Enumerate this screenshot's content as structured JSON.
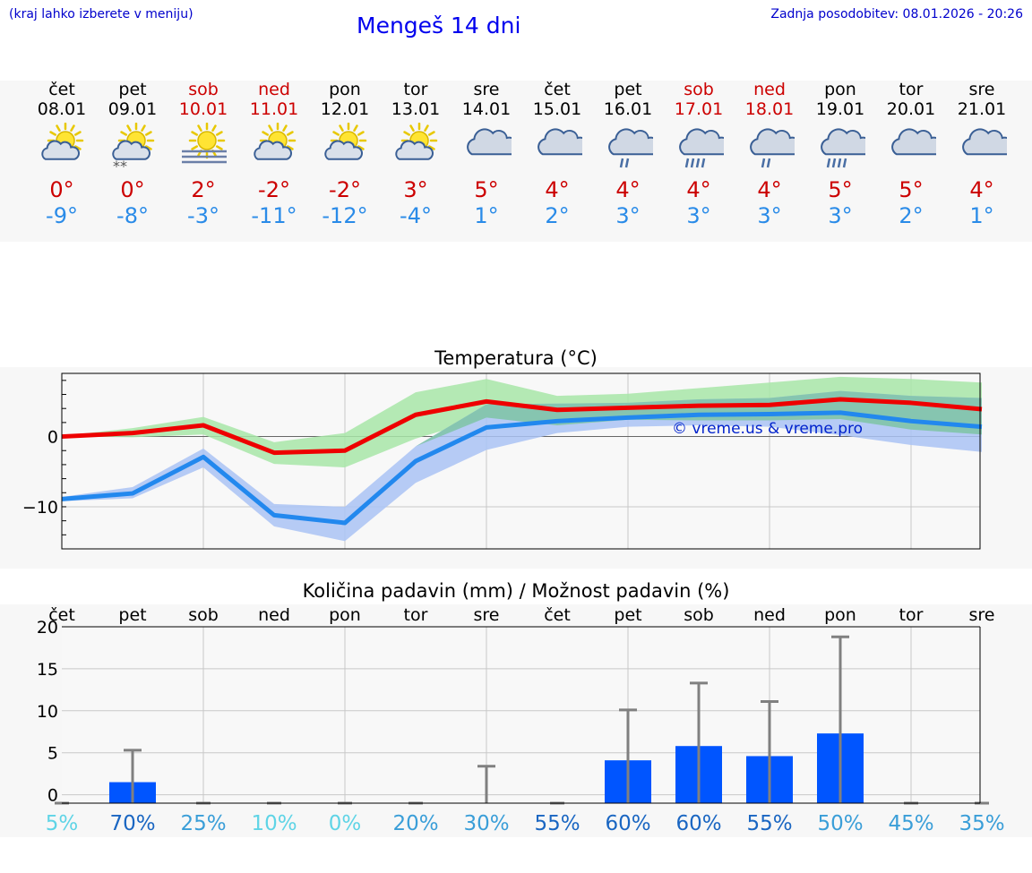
{
  "header": {
    "menu_hint": "(kraj lahko izberete v meniju)",
    "title": "Mengeš 14 dni",
    "updated": "Zadnja posodobitev: 08.01.2026 - 20:26"
  },
  "days": [
    {
      "name": "čet",
      "date": "08.01",
      "weekend": false,
      "icon": "sun-cloud-icon",
      "tmax": "0°",
      "tmin": "-9°"
    },
    {
      "name": "pet",
      "date": "09.01",
      "weekend": false,
      "icon": "sun-cloud-snow-icon",
      "tmax": "0°",
      "tmin": "-8°"
    },
    {
      "name": "sob",
      "date": "10.01",
      "weekend": true,
      "icon": "sun-fog-icon",
      "tmax": "2°",
      "tmin": "-3°"
    },
    {
      "name": "ned",
      "date": "11.01",
      "weekend": true,
      "icon": "sun-cloud-icon",
      "tmax": "-2°",
      "tmin": "-11°"
    },
    {
      "name": "pon",
      "date": "12.01",
      "weekend": false,
      "icon": "sun-cloud-icon",
      "tmax": "-2°",
      "tmin": "-12°"
    },
    {
      "name": "tor",
      "date": "13.01",
      "weekend": false,
      "icon": "sun-cloud-icon",
      "tmax": "3°",
      "tmin": "-4°"
    },
    {
      "name": "sre",
      "date": "14.01",
      "weekend": false,
      "icon": "cloud-icon",
      "tmax": "5°",
      "tmin": "1°"
    },
    {
      "name": "čet",
      "date": "15.01",
      "weekend": false,
      "icon": "cloud-icon",
      "tmax": "4°",
      "tmin": "2°"
    },
    {
      "name": "pet",
      "date": "16.01",
      "weekend": false,
      "icon": "cloud-rain-icon",
      "tmax": "4°",
      "tmin": "3°"
    },
    {
      "name": "sob",
      "date": "17.01",
      "weekend": true,
      "icon": "cloud-heavy-rain-icon",
      "tmax": "4°",
      "tmin": "3°"
    },
    {
      "name": "ned",
      "date": "18.01",
      "weekend": true,
      "icon": "cloud-rain-icon",
      "tmax": "4°",
      "tmin": "3°"
    },
    {
      "name": "pon",
      "date": "19.01",
      "weekend": false,
      "icon": "cloud-heavy-rain-icon",
      "tmax": "5°",
      "tmin": "3°"
    },
    {
      "name": "tor",
      "date": "20.01",
      "weekend": false,
      "icon": "cloud-icon",
      "tmax": "5°",
      "tmin": "2°"
    },
    {
      "name": "sre",
      "date": "21.01",
      "weekend": false,
      "icon": "cloud-icon",
      "tmax": "4°",
      "tmin": "1°"
    }
  ],
  "colors": {
    "max_line": "#ee0000",
    "min_line": "#2288ee",
    "max_band": "#a8e6a8",
    "min_band": "#aac3f5",
    "overlap": "#7fc4a6",
    "bar": "#0055ff",
    "error": "#808080"
  },
  "chart_data": [
    {
      "type": "line",
      "title": "Temperatura (°C)",
      "watermark": "© vreme.us & vreme.pro",
      "x": [
        0,
        1,
        2,
        3,
        4,
        5,
        6,
        7,
        8,
        9,
        10,
        11,
        12,
        13
      ],
      "ylim": [
        -16,
        9
      ],
      "yticks": [
        0,
        -10
      ],
      "ytick_labels": [
        "0",
        "−10"
      ],
      "series": [
        {
          "name": "max",
          "values": [
            0.0,
            0.5,
            1.6,
            -2.3,
            -2.0,
            3.1,
            5.0,
            3.8,
            4.1,
            4.4,
            4.5,
            5.3,
            4.8,
            3.9
          ],
          "band_low": [
            0.0,
            -0.1,
            0.3,
            -3.9,
            -4.4,
            -0.3,
            2.7,
            1.6,
            2.4,
            2.3,
            2.3,
            2.5,
            1.0,
            0.3
          ],
          "band_high": [
            0.1,
            1.2,
            2.8,
            -0.8,
            0.5,
            6.3,
            8.2,
            5.8,
            6.1,
            6.9,
            7.7,
            8.5,
            8.2,
            7.7
          ]
        },
        {
          "name": "min",
          "values": [
            -8.9,
            -8.1,
            -2.9,
            -11.2,
            -12.3,
            -3.5,
            1.3,
            2.2,
            2.7,
            3.1,
            3.2,
            3.4,
            2.2,
            1.4
          ],
          "band_low": [
            -9.2,
            -8.8,
            -4.4,
            -12.8,
            -14.9,
            -6.6,
            -1.9,
            0.5,
            1.4,
            1.6,
            1.4,
            0.2,
            -1.2,
            -2.2
          ],
          "band_high": [
            -8.6,
            -7.2,
            -1.7,
            -9.6,
            -10.0,
            -1.4,
            4.6,
            4.7,
            4.8,
            5.3,
            5.5,
            6.5,
            5.8,
            5.5
          ]
        }
      ]
    },
    {
      "type": "bar",
      "title": "Količina padavin (mm) / Možnost padavin (%)",
      "categories": [
        "čet",
        "pet",
        "sob",
        "ned",
        "pon",
        "tor",
        "sre",
        "čet",
        "pet",
        "sob",
        "ned",
        "pon",
        "tor",
        "sre"
      ],
      "values": [
        0,
        1.5,
        0,
        0,
        0,
        0,
        0,
        0,
        4.1,
        5.8,
        4.6,
        7.3,
        0,
        0
      ],
      "error_high": [
        0,
        5.3,
        0,
        0,
        0,
        0,
        3.4,
        0,
        10.1,
        13.3,
        11.1,
        18.8,
        0,
        0
      ],
      "ylim": [
        -1,
        20
      ],
      "yticks": [
        0,
        5,
        10,
        15,
        20
      ],
      "probability": [
        "5%",
        "70%",
        "25%",
        "10%",
        "0%",
        "20%",
        "30%",
        "55%",
        "60%",
        "60%",
        "55%",
        "50%",
        "45%",
        "35%"
      ],
      "probability_colors": [
        "#5fd4e6",
        "#1a66c2",
        "#3a9ed8",
        "#5fd4e6",
        "#5fd4e6",
        "#3a9ed8",
        "#3a9ed8",
        "#1a66c2",
        "#1a66c2",
        "#1a66c2",
        "#1a66c2",
        "#3a9ed8",
        "#3a9ed8",
        "#3a9ed8"
      ]
    }
  ]
}
